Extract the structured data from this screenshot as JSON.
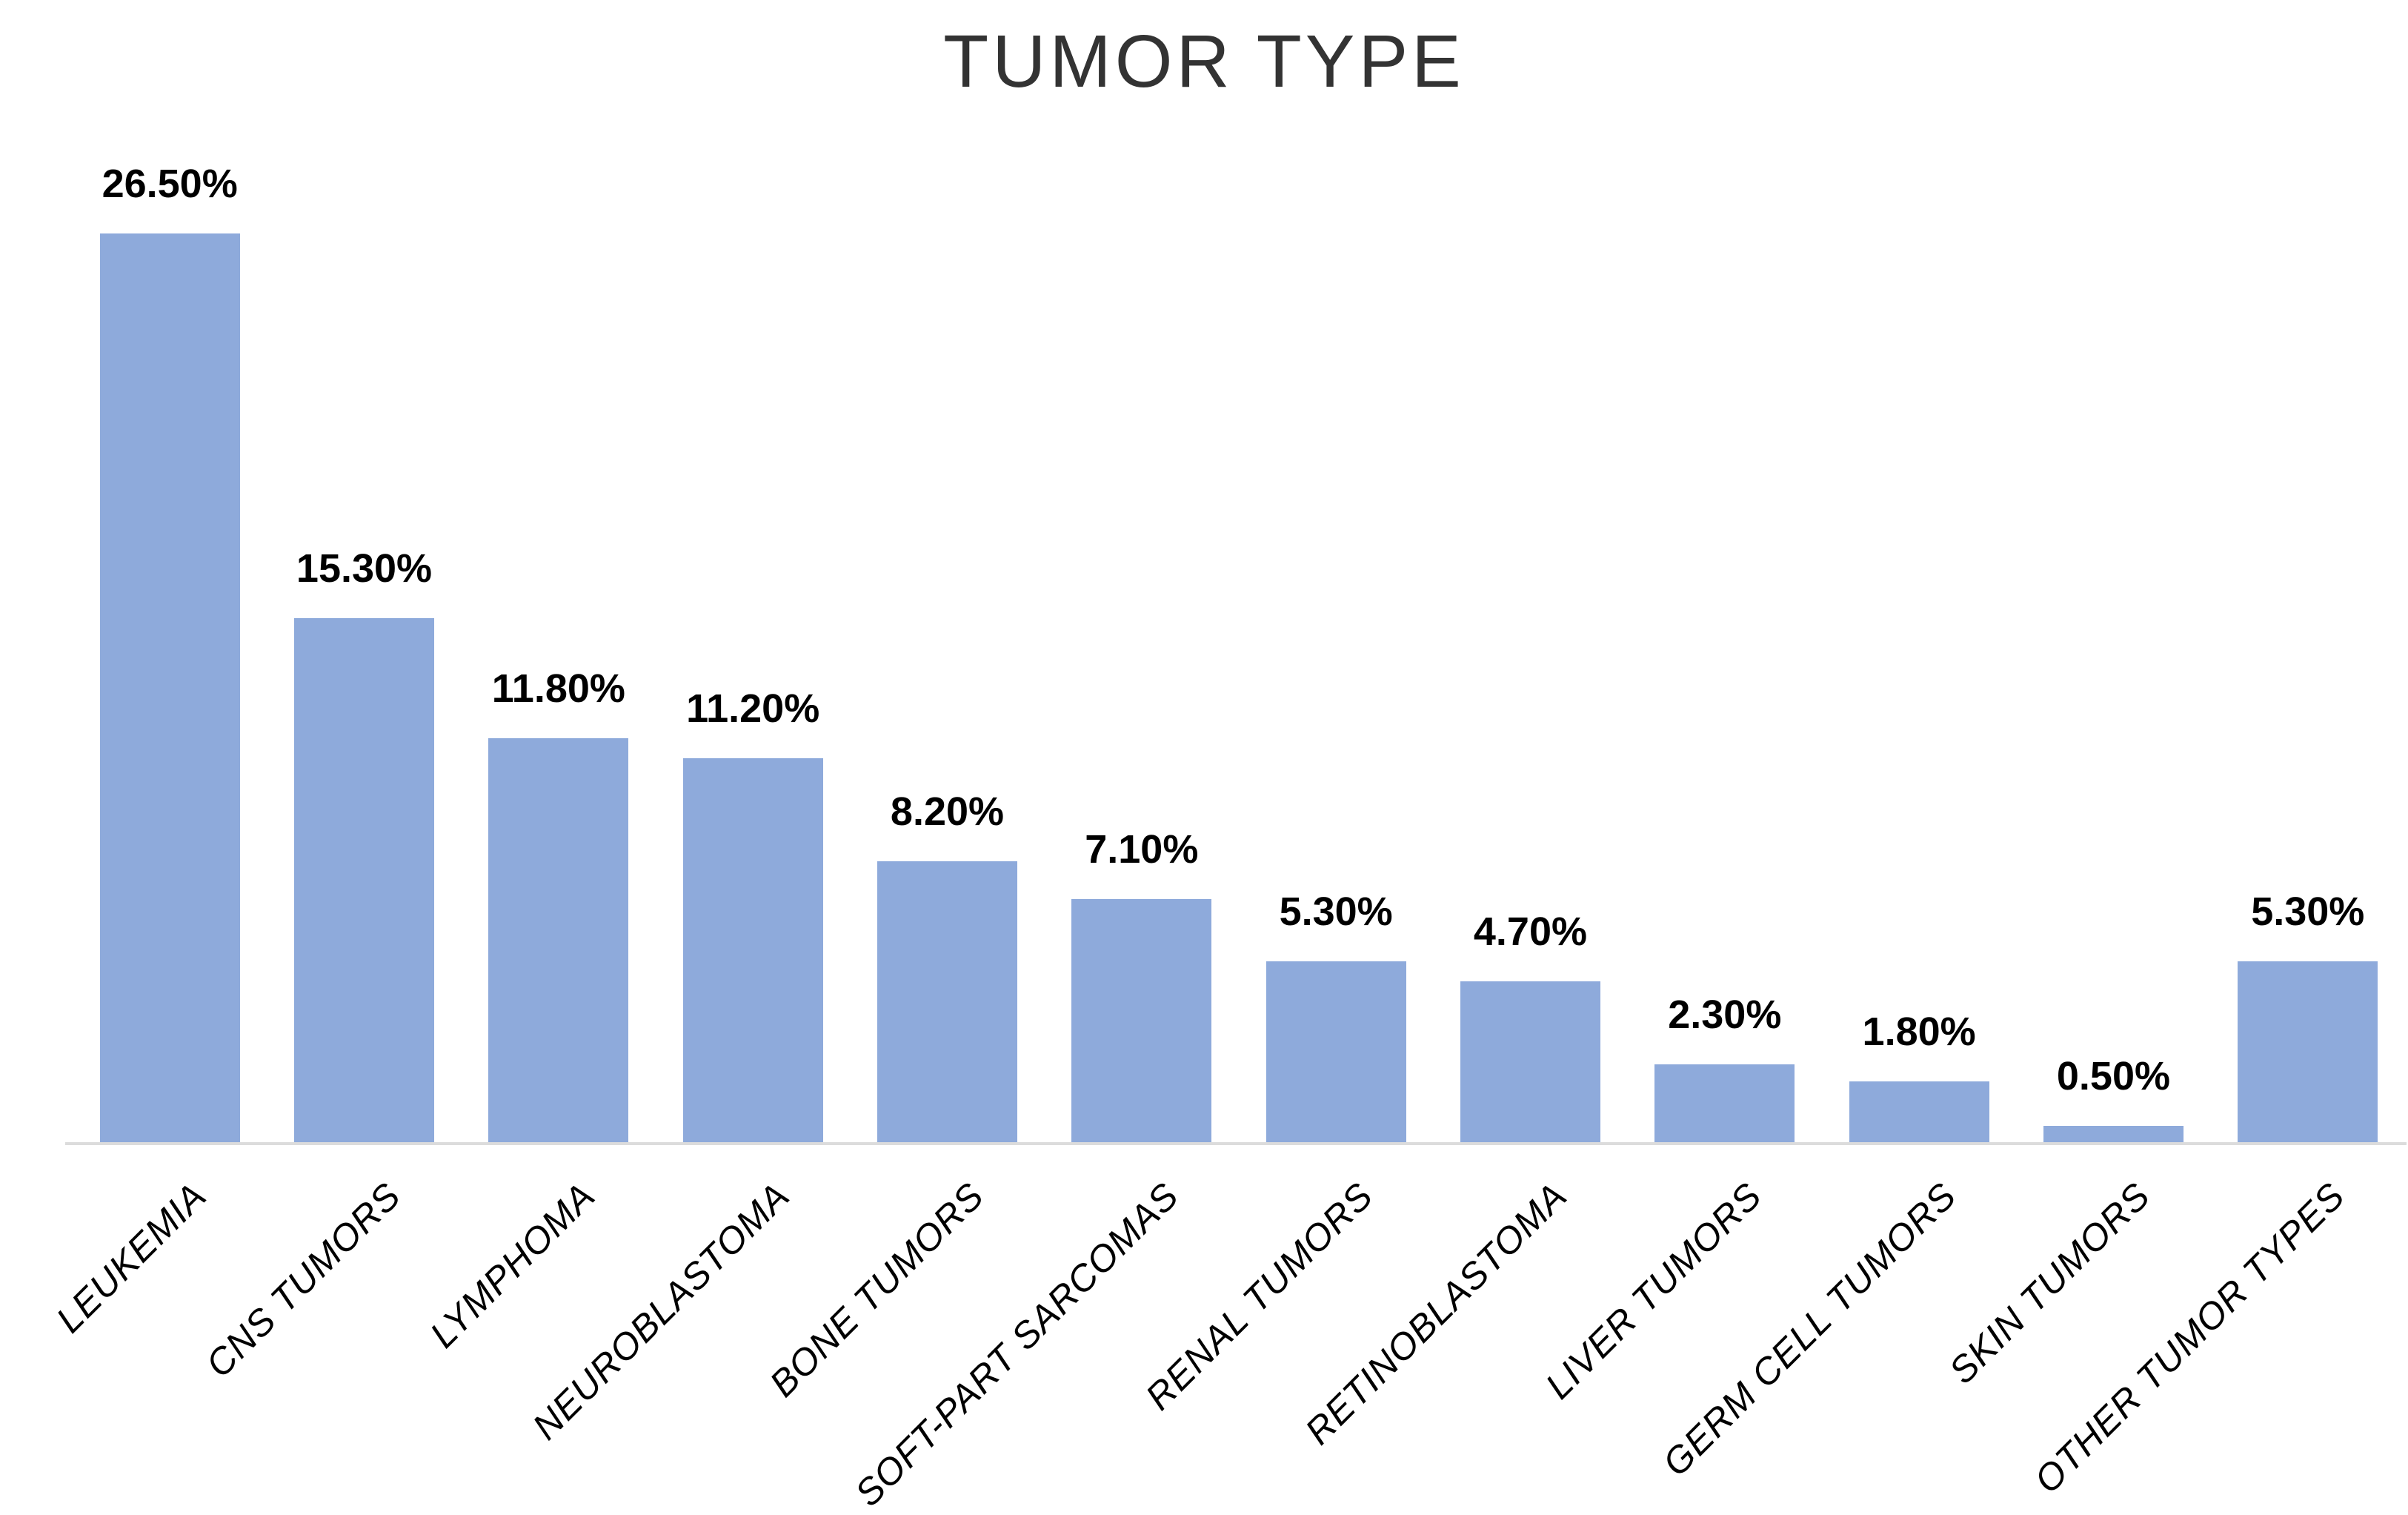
{
  "colors": {
    "bar_fill": "#8EAADB",
    "axis_line": "#DCDCDC",
    "title_text": "#333333",
    "label_text": "#000000"
  },
  "chart_data": {
    "type": "bar",
    "title": "TUMOR TYPE",
    "xlabel": "",
    "ylabel": "",
    "categories": [
      "LEUKEMIA",
      "CNS TUMORS",
      "LYMPHOMA",
      "NEUROBLASTOMA",
      "BONE TUMORS",
      "SOFT-PART SARCOMAS",
      "RENAL TUMORS",
      "RETINOBLASTOMA",
      "LIVER TUMORS",
      "GERM CELL TUMORS",
      "SKIN TUMORS",
      "OTHER TUMOR TYPES"
    ],
    "values": [
      26.5,
      15.3,
      11.8,
      11.2,
      8.2,
      7.1,
      5.3,
      4.7,
      2.3,
      1.8,
      0.5,
      5.3
    ],
    "value_labels": [
      "26.50%",
      "15.30%",
      "11.80%",
      "11.20%",
      "8.20%",
      "7.10%",
      "5.30%",
      "4.70%",
      "2.30%",
      "1.80%",
      "0.50%",
      "5.30%"
    ],
    "unit": "percent",
    "data_labels_position": "above-bar",
    "category_label_rotation_deg": -45,
    "y_axis_visible": false,
    "gridlines": false,
    "legend": "none"
  }
}
